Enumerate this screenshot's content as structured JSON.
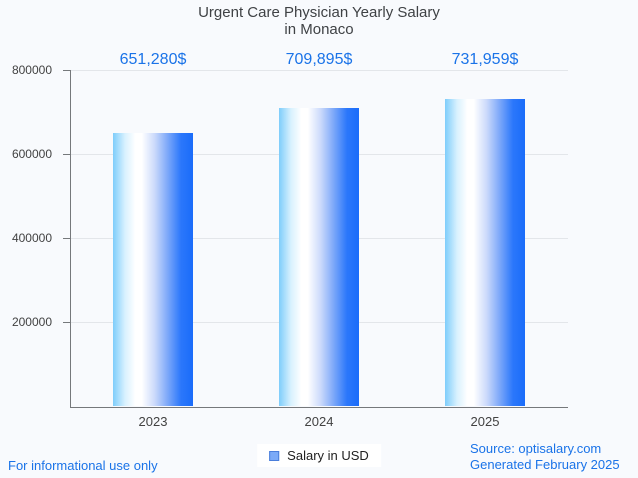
{
  "chart_data": {
    "type": "bar",
    "title_line1": "Urgent Care Physician Yearly Salary",
    "title_line2": "in Monaco",
    "categories": [
      "2023",
      "2024",
      "2025"
    ],
    "values": [
      651280,
      709895,
      731959
    ],
    "value_labels": [
      "651,280$",
      "709,895$",
      "731,959$"
    ],
    "series_name": "Salary in USD",
    "ylim": [
      0,
      800000
    ],
    "yticks": [
      200000,
      400000,
      600000,
      800000
    ],
    "ytick_labels": [
      "200000",
      "400000",
      "600000",
      "800000"
    ],
    "grid": true,
    "legend_position": "bottom-center"
  },
  "legend": {
    "label": "Salary in USD"
  },
  "footer": {
    "left_note": "For informational use only",
    "source": "Source: optisalary.com",
    "generated": "Generated February 2025"
  },
  "colors": {
    "background": "#f8fafd",
    "accent_blue": "#1a73e8",
    "title_text": "#3f4245",
    "axis": "#75787b",
    "gridline": "#e3e6ea",
    "bar_gradient_left": "#7ecdfb",
    "bar_gradient_mid": "#ffffff",
    "bar_gradient_right": "#1a6cfa",
    "legend_marker_fill": "#7baaf7",
    "legend_marker_border": "#4a7edb"
  }
}
